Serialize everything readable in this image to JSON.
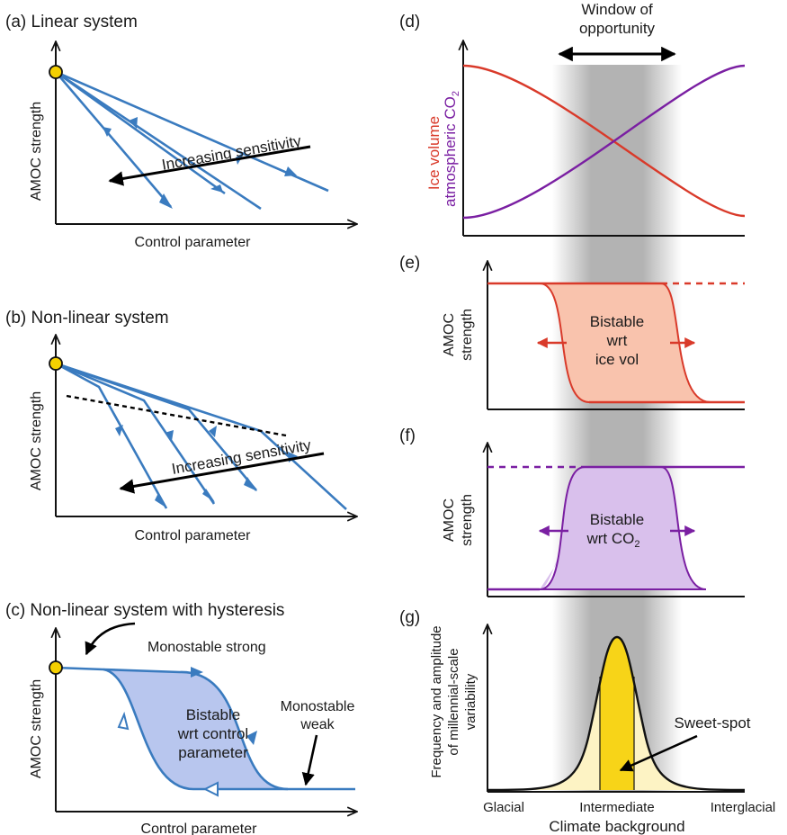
{
  "panel_a": {
    "title": "(a) Linear system",
    "ylabel": "AMOC strength",
    "xlabel": "Control parameter",
    "arrow_label": "Increasing sensitivity"
  },
  "panel_b": {
    "title": "(b) Non-linear system",
    "ylabel": "AMOC strength",
    "xlabel": "Control parameter",
    "arrow_label": "Increasing sensitivity"
  },
  "panel_c": {
    "title": "(c) Non-linear system with hysteresis",
    "ylabel": "AMOC strength",
    "xlabel": "Control parameter",
    "mono_strong": "Monostable strong",
    "mono_weak_1": "Monostable",
    "mono_weak_2": "weak",
    "bistable_1": "Bistable",
    "bistable_2": "wrt control",
    "bistable_3": "parameter"
  },
  "panel_d": {
    "letter": "(d)",
    "window_1": "Window of",
    "window_2": "opportunity",
    "ylabel_ice": "Ice volume",
    "ylabel_co2": "atmospheric CO",
    "co2_sub": "2"
  },
  "panel_e": {
    "letter": "(e)",
    "ylabel_1": "AMOC",
    "ylabel_2": "strength",
    "box_1": "Bistable",
    "box_2": "wrt",
    "box_3": "ice vol"
  },
  "panel_f": {
    "letter": "(f)",
    "ylabel_1": "AMOC",
    "ylabel_2": "strength",
    "box_1": "Bistable",
    "box_2": "wrt CO",
    "box_sub": "2"
  },
  "panel_g": {
    "letter": "(g)",
    "ylabel_1": "Frequency and amplitude",
    "ylabel_2": "of millennial-scale",
    "ylabel_3": "variability",
    "sweet_spot": "Sweet-spot",
    "tick_1": "Glacial",
    "tick_2": "Intermediate",
    "tick_3": "Interglacial",
    "xlabel": "Climate background"
  },
  "colors": {
    "line_blue": "#3a7bbf",
    "fill_blue": "#b8c6ee",
    "ice_red": "#d93a2a",
    "co2_purple": "#7a1fa2",
    "fill_red": "#f9c3ad",
    "fill_purple": "#d9c0ec",
    "window_gray": "#b3b3b3",
    "sweet_yellow": "#f7d418",
    "pale_yellow": "#fdf3c4",
    "point_yellow": "#f5d000"
  }
}
